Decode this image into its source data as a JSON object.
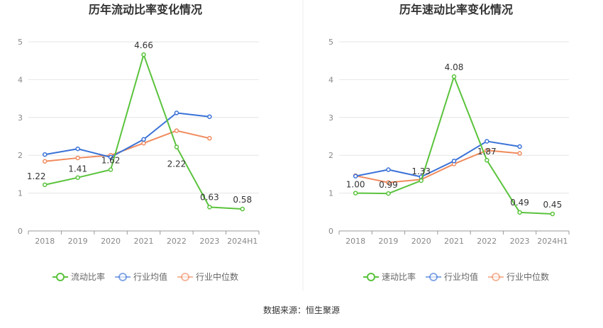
{
  "source_text": "数据来源：恒生聚源",
  "chart_data": [
    {
      "type": "line",
      "title": "历年流动比率变化情况",
      "categories": [
        "2018",
        "2019",
        "2020",
        "2021",
        "2022",
        "2023",
        "2024H1"
      ],
      "ylim": [
        0,
        5
      ],
      "yticks": [
        0,
        1,
        2,
        3,
        4,
        5
      ],
      "grid": true,
      "legend_position": "bottom",
      "series": [
        {
          "name": "流动比率",
          "color": "#5ac33c",
          "values": [
            1.22,
            1.41,
            1.62,
            4.66,
            2.22,
            0.63,
            0.58
          ],
          "labels": [
            "1.22",
            "1.41",
            "1.62",
            "4.66",
            "2.22",
            "0.63",
            "0.58"
          ]
        },
        {
          "name": "行业均值",
          "color": "#3a72d8",
          "values": [
            2.02,
            2.17,
            1.95,
            2.42,
            3.12,
            3.02,
            null
          ]
        },
        {
          "name": "行业中位数",
          "color": "#f08a5d",
          "values": [
            1.84,
            1.93,
            2.0,
            2.32,
            2.65,
            2.45,
            null
          ]
        }
      ]
    },
    {
      "type": "line",
      "title": "历年速动比率变化情况",
      "categories": [
        "2018",
        "2019",
        "2020",
        "2021",
        "2022",
        "2023",
        "2024H1"
      ],
      "ylim": [
        0,
        5
      ],
      "yticks": [
        0,
        1,
        2,
        3,
        4,
        5
      ],
      "grid": true,
      "legend_position": "bottom",
      "series": [
        {
          "name": "速动比率",
          "color": "#5ac33c",
          "values": [
            1.0,
            0.99,
            1.33,
            4.08,
            1.87,
            0.49,
            0.45
          ],
          "labels": [
            "1.00",
            "0.99",
            "1.33",
            "4.08",
            "1.87",
            "0.49",
            "0.45"
          ]
        },
        {
          "name": "行业均值",
          "color": "#3a72d8",
          "values": [
            1.45,
            1.62,
            1.43,
            1.85,
            2.37,
            2.23,
            null
          ]
        },
        {
          "name": "行业中位数",
          "color": "#f08a5d",
          "values": [
            1.46,
            1.28,
            1.36,
            1.77,
            2.13,
            2.05,
            null
          ]
        }
      ]
    }
  ]
}
